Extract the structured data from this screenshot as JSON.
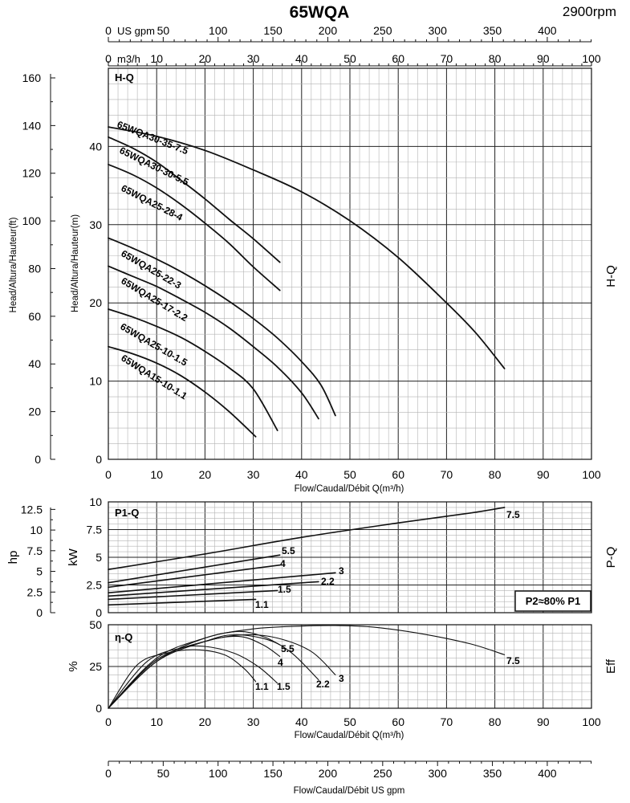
{
  "page": {
    "title": "65WQA",
    "speed": "2900rpm",
    "top_axis_gpm": {
      "unit": "US gpm",
      "ticks": [
        "0",
        "50",
        "100",
        "150",
        "200",
        "250",
        "300",
        "350",
        "400"
      ]
    },
    "top_axis_m3h": {
      "unit": "m3/h",
      "ticks": [
        "0",
        "10",
        "20",
        "30",
        "40",
        "50",
        "60",
        "70",
        "80",
        "90",
        "100"
      ]
    },
    "bottom_axis_gpm": {
      "ticks": [
        "0",
        "50",
        "100",
        "150",
        "200",
        "250",
        "300",
        "350",
        "400"
      ],
      "label": "Flow/Caudal/Débit  US gpm"
    },
    "flow_label_main": "Flow/Caudal/Débit Q(m³/h)",
    "flow_label_eff": "Flow/Caudal/Débit Q(m³/h)"
  },
  "chart_data": [
    {
      "id": "hq",
      "type": "line",
      "panel_label": "H-Q",
      "side_label": "H-Q",
      "xlabel": "Flow/Caudal/Débit Q(m³/h)",
      "ylabel": "Head/Altura/Hauteur(m)",
      "ylabel_secondary": "Head/Altura/Hauteur(ft)",
      "xlim": [
        0,
        100
      ],
      "ylim": [
        0,
        50
      ],
      "x_ticks": [
        "0",
        "10",
        "20",
        "30",
        "40",
        "50",
        "60",
        "70",
        "80",
        "90",
        "100"
      ],
      "y_ticks": [
        "0",
        "10",
        "20",
        "30",
        "40"
      ],
      "y_ticks_ft": [
        "0",
        "20",
        "40",
        "60",
        "80",
        "100",
        "120",
        "140",
        "160"
      ],
      "series": [
        {
          "name": "65WQA30-35-7.5",
          "x": [
            0,
            10,
            20,
            30,
            40,
            50,
            60,
            70,
            76,
            82
          ],
          "y": [
            42.5,
            41.3,
            39.5,
            37.0,
            34.2,
            30.5,
            25.8,
            20.0,
            16.2,
            11.6
          ]
        },
        {
          "name": "65WQA30-30-5.5",
          "x": [
            0,
            5,
            10,
            15,
            20,
            25,
            30,
            35.5
          ],
          "y": [
            41.2,
            39.8,
            38.0,
            35.7,
            33.3,
            30.7,
            28.2,
            25.2
          ]
        },
        {
          "name": "65WQA25-28-4",
          "x": [
            0,
            5,
            10,
            15,
            20,
            25,
            30,
            35.5
          ],
          "y": [
            37.7,
            36.4,
            34.7,
            32.6,
            30.2,
            27.6,
            24.6,
            21.6
          ]
        },
        {
          "name": "65WQA25-22-3",
          "x": [
            0,
            5,
            10,
            15,
            20,
            25,
            30,
            35,
            40,
            44,
            47
          ],
          "y": [
            28.3,
            27.0,
            25.6,
            24.0,
            22.2,
            20.2,
            18.0,
            15.5,
            12.5,
            9.5,
            5.6
          ]
        },
        {
          "name": "65WQA25-17-2.2",
          "x": [
            0,
            5,
            10,
            15,
            20,
            25,
            30,
            35,
            40,
            43.5
          ],
          "y": [
            24.7,
            23.4,
            22.1,
            20.5,
            18.8,
            16.8,
            14.4,
            11.8,
            8.5,
            5.2
          ]
        },
        {
          "name": "65WQA25-10-1.5",
          "x": [
            0,
            5,
            10,
            15,
            20,
            25,
            30,
            35
          ],
          "y": [
            19.2,
            18.2,
            17.0,
            15.6,
            13.8,
            11.7,
            9.0,
            3.7
          ]
        },
        {
          "name": "65WQA15-10-1.1",
          "x": [
            0,
            5,
            10,
            15,
            20,
            25,
            30.5
          ],
          "y": [
            14.4,
            13.5,
            12.3,
            10.7,
            8.6,
            6.1,
            2.9
          ]
        }
      ]
    },
    {
      "id": "pq",
      "type": "line",
      "panel_label": "P1-Q",
      "side_label": "P-Q",
      "ylabel": "kW",
      "ylabel_secondary": "hp",
      "note": "P2≈80% P1",
      "xlim": [
        0,
        100
      ],
      "ylim": [
        0,
        10
      ],
      "y_ticks": [
        "0",
        "2.5",
        "5",
        "7.5",
        "10"
      ],
      "y_ticks_hp": [
        "0",
        "2.5",
        "5",
        "7.5",
        "10",
        "12.5"
      ],
      "series": [
        {
          "name": "7.5",
          "x": [
            0,
            20,
            40,
            60,
            75,
            82
          ],
          "y": [
            3.9,
            5.3,
            6.8,
            8.1,
            9.0,
            9.5
          ]
        },
        {
          "name": "5.5",
          "x": [
            0,
            35.5
          ],
          "y": [
            2.7,
            5.2
          ]
        },
        {
          "name": "4",
          "x": [
            0,
            35.5
          ],
          "y": [
            2.3,
            4.3
          ]
        },
        {
          "name": "3",
          "x": [
            0,
            47
          ],
          "y": [
            1.8,
            3.6
          ]
        },
        {
          "name": "2.2",
          "x": [
            0,
            43.5
          ],
          "y": [
            1.5,
            2.8
          ]
        },
        {
          "name": "1.5",
          "x": [
            0,
            35
          ],
          "y": [
            1.2,
            2.0
          ]
        },
        {
          "name": "1.1",
          "x": [
            0,
            30.5
          ],
          "y": [
            0.7,
            1.2
          ]
        }
      ]
    },
    {
      "id": "eta",
      "type": "line",
      "panel_label": "η-Q",
      "side_label": "Eff",
      "ylabel": "%",
      "xlim": [
        0,
        100
      ],
      "ylim": [
        0,
        50
      ],
      "y_ticks": [
        "0",
        "25",
        "50"
      ],
      "series": [
        {
          "name": "7.5",
          "x": [
            0,
            10,
            20,
            30,
            40,
            47,
            55,
            65,
            75,
            82
          ],
          "y": [
            0,
            28,
            42,
            47.5,
            49.2,
            49.5,
            48.5,
            44.5,
            38.5,
            32
          ]
        },
        {
          "name": "5.5",
          "x": [
            0,
            10,
            20,
            27,
            32,
            35.5
          ],
          "y": [
            0,
            30,
            42,
            46,
            43,
            38
          ]
        },
        {
          "name": "4",
          "x": [
            0,
            10,
            20,
            27,
            32,
            35.5
          ],
          "y": [
            0,
            29,
            40,
            43,
            38,
            31
          ]
        },
        {
          "name": "3",
          "x": [
            0,
            10,
            20,
            28,
            35,
            42,
            47
          ],
          "y": [
            0,
            29,
            40,
            44,
            42,
            34,
            20
          ]
        },
        {
          "name": "2.2",
          "x": [
            0,
            10,
            20,
            26,
            33,
            38,
            43.5
          ],
          "y": [
            0,
            28,
            40,
            44,
            41,
            33,
            17
          ]
        },
        {
          "name": "1.5",
          "x": [
            0,
            8,
            15,
            20,
            26,
            31,
            35
          ],
          "y": [
            0,
            28,
            36,
            37,
            33,
            25,
            15
          ]
        },
        {
          "name": "1.1",
          "x": [
            0,
            6,
            12,
            18,
            24,
            28,
            30.5
          ],
          "y": [
            0,
            26,
            33,
            35,
            32,
            24,
            16
          ]
        }
      ]
    }
  ]
}
